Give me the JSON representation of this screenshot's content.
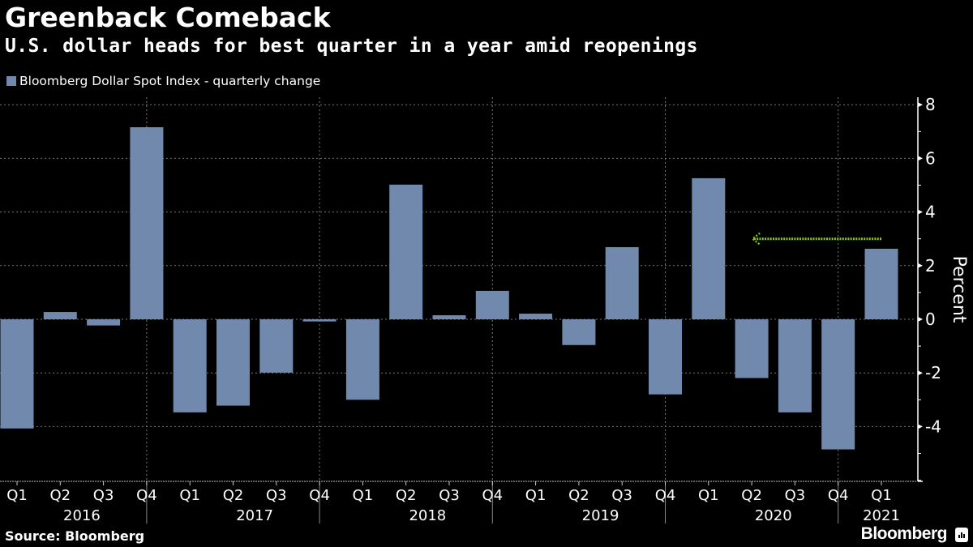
{
  "header": {
    "title": "Greenback Comeback",
    "subtitle": "U.S. dollar heads for best quarter in a year amid reopenings"
  },
  "footer": {
    "source": "Source: Bloomberg",
    "brand": "Bloomberg"
  },
  "colors": {
    "bar": "#7089ac",
    "arrow": "#7fd500",
    "background": "#000000",
    "grid": "#777777"
  },
  "chart_data": {
    "type": "bar",
    "title": "Greenback Comeback",
    "subtitle": "U.S. dollar heads for best quarter in a year amid reopenings",
    "xlabel": "",
    "ylabel": "Percent",
    "ylim": [
      -6,
      8.3
    ],
    "yticks": [
      8,
      6,
      4,
      2,
      0,
      -2,
      -4
    ],
    "ytick_labels": [
      "8",
      "6",
      "4",
      "2",
      "0",
      "-2",
      "-4"
    ],
    "grid": true,
    "y_axis_side": "right",
    "legend": {
      "entries": [
        "Bloomberg Dollar Spot Index - quarterly change"
      ],
      "placement": "top-left"
    },
    "categories": [
      "Q1",
      "Q2",
      "Q3",
      "Q4",
      "Q1",
      "Q2",
      "Q3",
      "Q4",
      "Q1",
      "Q2",
      "Q3",
      "Q4",
      "Q1",
      "Q2",
      "Q3",
      "Q4",
      "Q1",
      "Q2",
      "Q3",
      "Q4",
      "Q1"
    ],
    "years": [
      {
        "label": "2016",
        "start": 0,
        "end": 3
      },
      {
        "label": "2017",
        "start": 4,
        "end": 7
      },
      {
        "label": "2018",
        "start": 8,
        "end": 11
      },
      {
        "label": "2019",
        "start": 12,
        "end": 15
      },
      {
        "label": "2020",
        "start": 16,
        "end": 19
      },
      {
        "label": "2021",
        "start": 20,
        "end": 20
      }
    ],
    "series": [
      {
        "name": "Bloomberg Dollar Spot Index - quarterly change",
        "values": [
          -4.07,
          0.27,
          -0.23,
          7.16,
          -3.47,
          -3.22,
          -1.99,
          -0.08,
          -3.0,
          5.02,
          0.15,
          1.06,
          0.21,
          -0.96,
          2.69,
          -2.8,
          5.26,
          -2.19,
          -3.47,
          -4.85,
          2.63
        ]
      }
    ],
    "annotations": [
      {
        "type": "arrow",
        "style": "dotted",
        "from_index": 20,
        "to_index": 17,
        "y": 3.0,
        "description": "Q1 2021 gain compared back to Q1 2020"
      }
    ]
  }
}
